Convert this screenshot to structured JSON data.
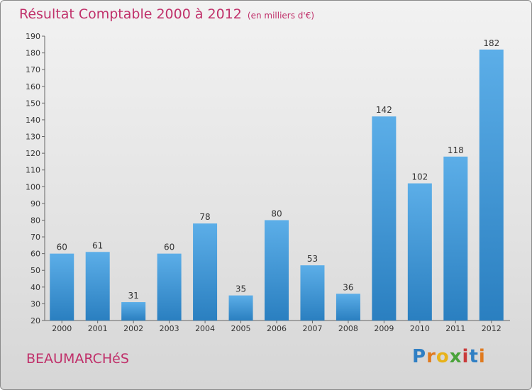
{
  "title": "Résultat Comptable 2000 à 2012",
  "subtitle": "(en milliers d'€)",
  "commune": "BEAUMARCHéS",
  "logo": {
    "letters": [
      "P",
      "r",
      "o",
      "x",
      "i",
      "t",
      "i"
    ],
    "colors": [
      "#2f7fc4",
      "#e07a1f",
      "#e8b21a",
      "#4aa33a",
      "#c93a3a",
      "#2f7fc4",
      "#e07a1f"
    ]
  },
  "colors": {
    "bar_light": "#5caee8",
    "bar_dark": "#2a7fc0",
    "title": "#c0306a"
  },
  "chart_data": {
    "type": "bar",
    "title": "Résultat Comptable 2000 à 2012",
    "xlabel": "",
    "ylabel": "",
    "categories": [
      "2000",
      "2001",
      "2002",
      "2003",
      "2004",
      "2005",
      "2006",
      "2007",
      "2008",
      "2009",
      "2010",
      "2011",
      "2012"
    ],
    "values": [
      60,
      61,
      31,
      60,
      78,
      35,
      80,
      53,
      36,
      142,
      102,
      118,
      182
    ],
    "ylim": [
      20,
      190
    ],
    "yticks": [
      20,
      30,
      40,
      50,
      60,
      70,
      80,
      90,
      100,
      110,
      120,
      130,
      140,
      150,
      160,
      170,
      180,
      190
    ],
    "grid": false
  }
}
